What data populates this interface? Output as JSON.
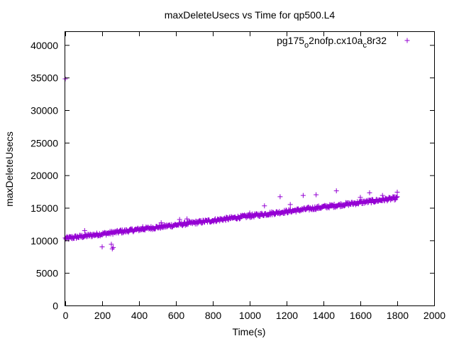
{
  "chart_data": {
    "type": "scatter",
    "title": "maxDeleteUsecs vs Time for qp500.L4",
    "xlabel": "Time(s)",
    "ylabel": "maxDeleteUsecs",
    "xlim": [
      0,
      2000
    ],
    "ylim": [
      0,
      42000
    ],
    "x_ticks": [
      "0",
      "200",
      "400",
      "600",
      "800",
      "1000",
      "1200",
      "1400",
      "1600",
      "1800",
      "2000"
    ],
    "y_ticks": [
      "0",
      "5000",
      "10000",
      "15000",
      "20000",
      "25000",
      "30000",
      "35000",
      "40000"
    ],
    "grid": false,
    "legend_position": "top-right",
    "series": [
      {
        "name": "pg175_o2nofp.cx10a_c8r32",
        "legend_parts": {
          "a": "pg175",
          "b": "o",
          "c": "2nofp.cx10a",
          "d": "c",
          "e": "8r32"
        },
        "color": "#9400D3",
        "marker": "+",
        "trend": {
          "x": [
            0,
            1800
          ],
          "y": [
            10300,
            16500
          ],
          "noise": 260
        },
        "points": [
          [
            0,
            34800
          ],
          [
            105,
            11500
          ],
          [
            200,
            9000
          ],
          [
            250,
            9400
          ],
          [
            255,
            8700
          ],
          [
            260,
            8900
          ],
          [
            300,
            11600
          ],
          [
            420,
            12100
          ],
          [
            520,
            12700
          ],
          [
            620,
            13200
          ],
          [
            660,
            13300
          ],
          [
            1000,
            14200
          ],
          [
            1080,
            15300
          ],
          [
            1165,
            16700
          ],
          [
            1220,
            15500
          ],
          [
            1290,
            16900
          ],
          [
            1360,
            17000
          ],
          [
            1470,
            17600
          ],
          [
            1600,
            16600
          ],
          [
            1650,
            17300
          ],
          [
            1720,
            16900
          ],
          [
            1800,
            17400
          ]
        ]
      }
    ]
  }
}
